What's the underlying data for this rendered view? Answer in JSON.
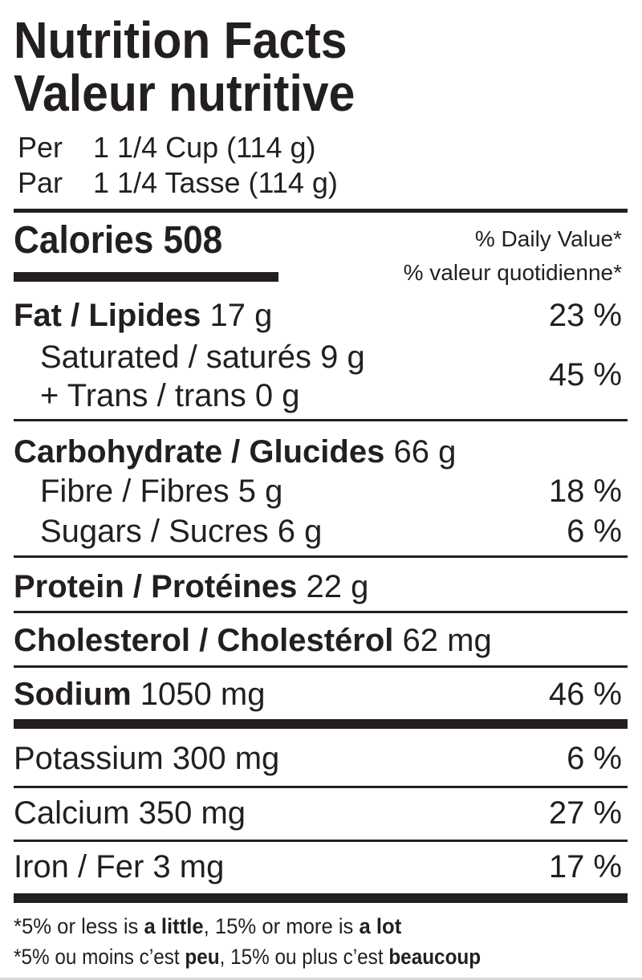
{
  "title_en": "Nutrition Facts",
  "title_fr": "Valeur nutritive",
  "serving": {
    "per_label": "Per",
    "per_value": "1 1/4 Cup (114 g)",
    "par_label": "Par",
    "par_value": "1 1/4 Tasse (114 g)"
  },
  "calories": {
    "label": "Calories",
    "value": "508"
  },
  "dv_header_en": "% Daily Value*",
  "dv_header_fr": "% valeur quotidienne*",
  "nutrients": {
    "fat": {
      "label": "Fat / Lipides",
      "amount": "17 g",
      "dv": "23 %"
    },
    "saturated": {
      "label": "Saturated / saturés",
      "amount": "9 g"
    },
    "trans": {
      "label": "+ Trans / trans",
      "amount": "0 g"
    },
    "sat_trans_dv": "45 %",
    "carb": {
      "label": "Carbohydrate / Glucides",
      "amount": "66 g"
    },
    "fibre": {
      "label": "Fibre / Fibres",
      "amount": "5 g",
      "dv": "18 %"
    },
    "sugars": {
      "label": "Sugars / Sucres",
      "amount": "6 g",
      "dv": "6 %"
    },
    "protein": {
      "label": "Protein / Protéines",
      "amount": "22 g"
    },
    "cholesterol": {
      "label": "Cholesterol / Cholestérol",
      "amount": "62 mg"
    },
    "sodium": {
      "label": "Sodium",
      "amount": "1050 mg",
      "dv": "46 %"
    },
    "potassium": {
      "label": "Potassium",
      "amount": "300 mg",
      "dv": "6 %"
    },
    "calcium": {
      "label": "Calcium",
      "amount": "350 mg",
      "dv": "27 %"
    },
    "iron": {
      "label": "Iron / Fer",
      "amount": "3 mg",
      "dv": "17 %"
    }
  },
  "footnote_en": {
    "p1": "*5% or less is ",
    "b1": "a little",
    "p2": ", 15% or more is ",
    "b2": "a lot"
  },
  "footnote_fr": {
    "p1": "*5% ou moins c’est ",
    "b1": "peu",
    "p2": ", 15% ou plus c’est ",
    "b2": "beaucoup"
  }
}
